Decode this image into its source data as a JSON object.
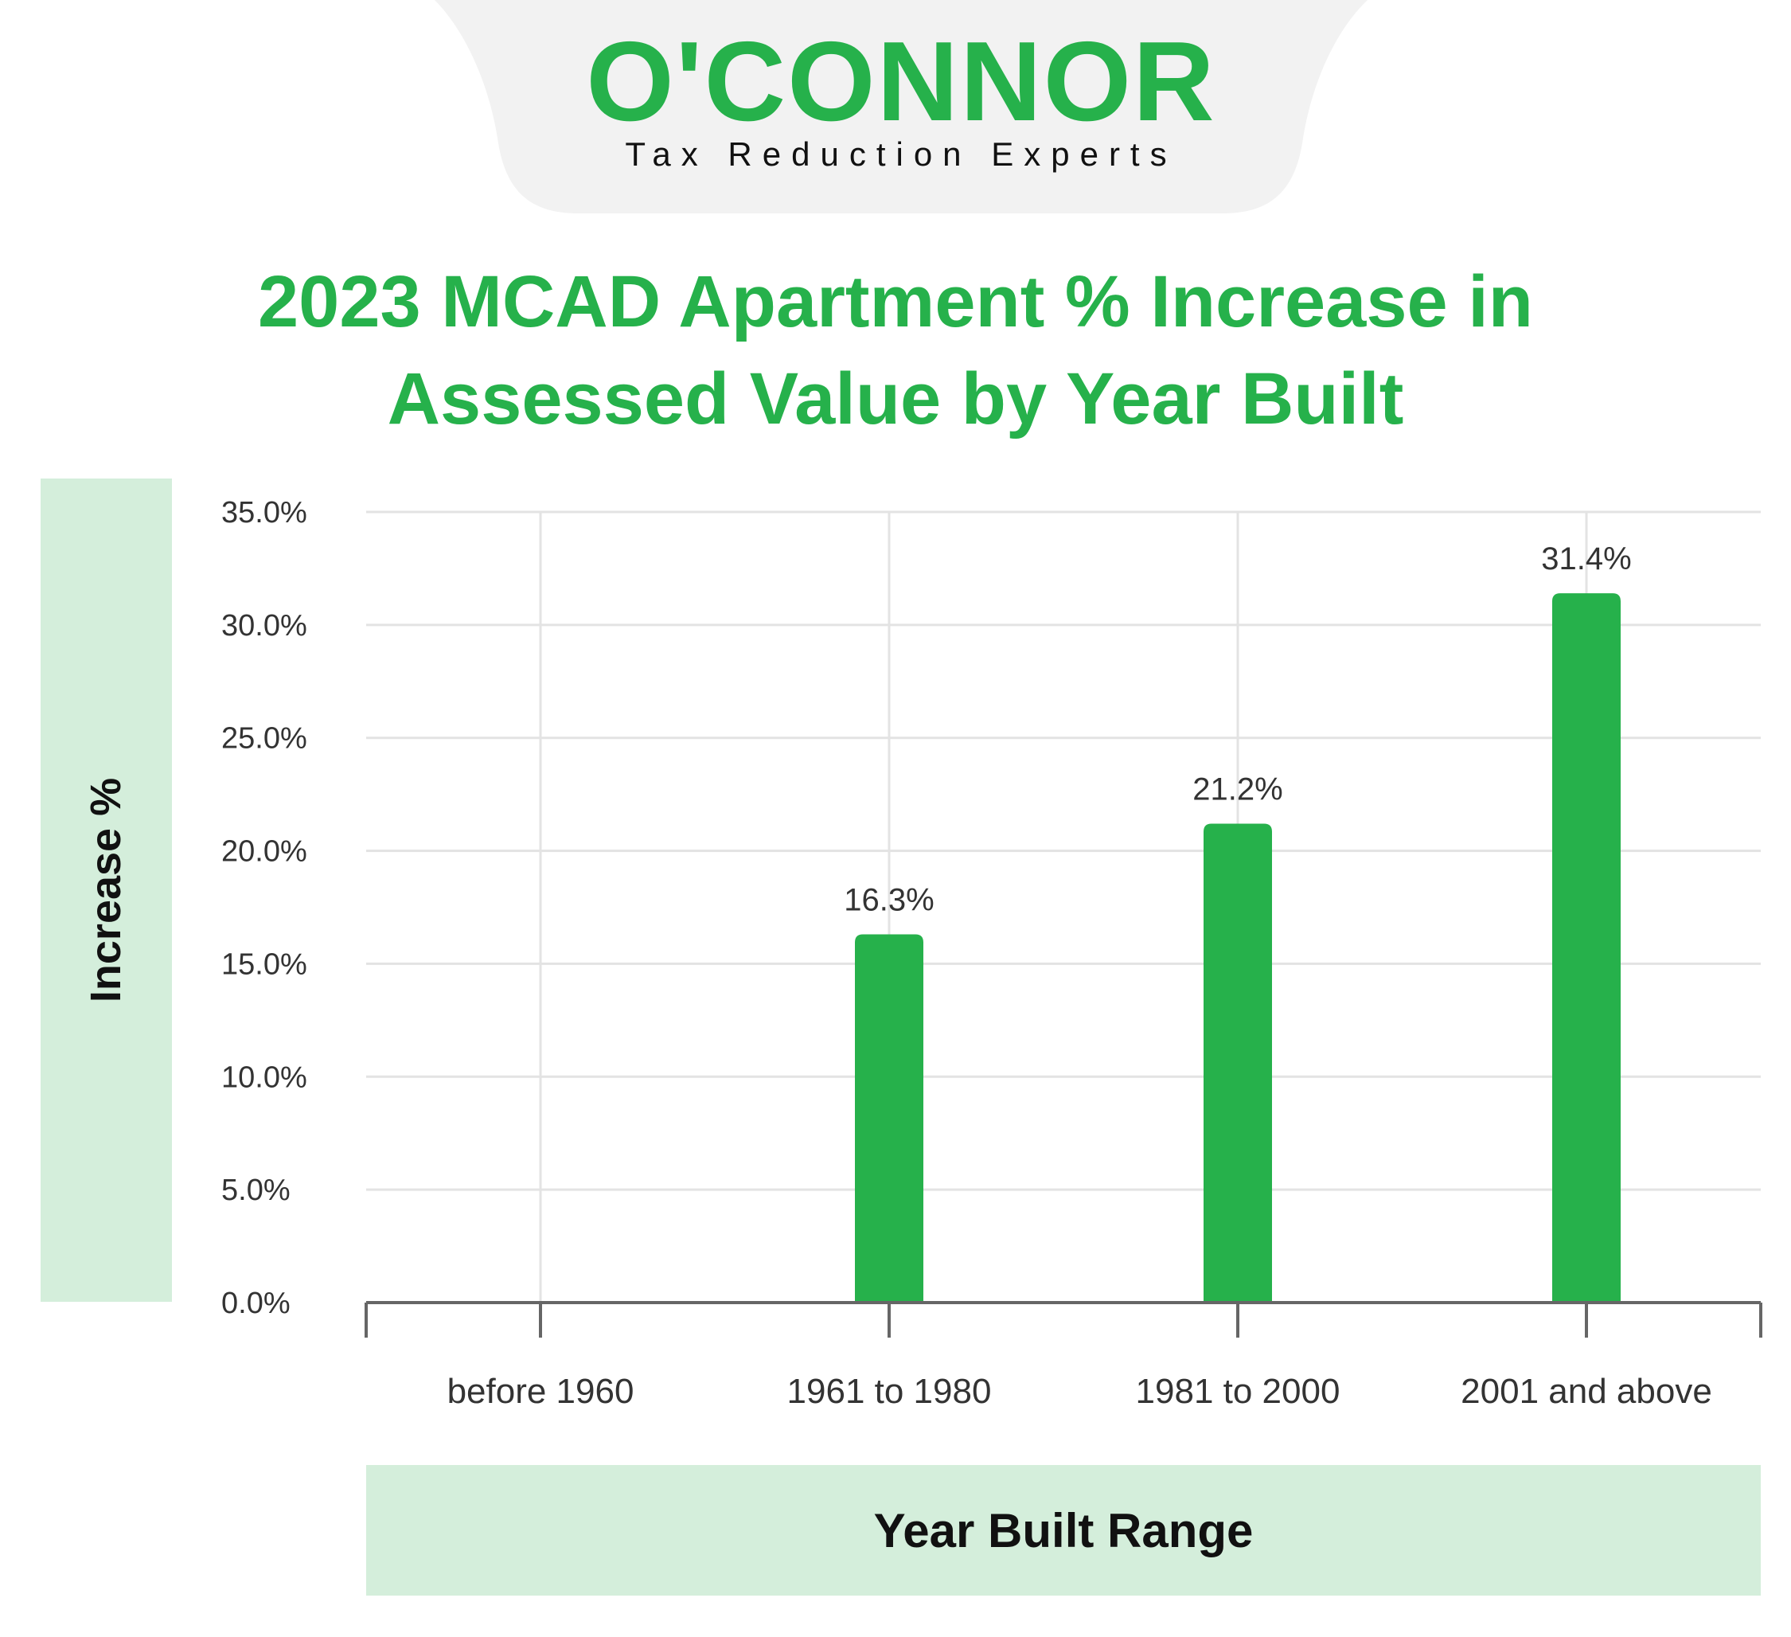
{
  "brand": {
    "name": "O'CONNOR",
    "tagline": "Tax Reduction Experts",
    "color": "#26b14b"
  },
  "chart_data": {
    "type": "bar",
    "title": "2023 MCAD Apartment % Increase in Assessed Value by Year Built",
    "xlabel": "Year Built Range",
    "ylabel": "Increase %",
    "categories": [
      "before 1960",
      "1961 to 1980",
      "1981 to 2000",
      "2001 and above"
    ],
    "values": [
      null,
      16.3,
      21.2,
      31.4
    ],
    "data_labels": [
      "",
      "16.3%",
      "21.2%",
      "31.4%"
    ],
    "yticks": [
      "0.0%",
      "5.0%",
      "10.0%",
      "15.0%",
      "20.0%",
      "25.0%",
      "30.0%",
      "35.0%"
    ],
    "ylim": [
      0,
      35
    ],
    "ytick_step": 5,
    "grid": true,
    "bar_color": "#26b14b",
    "label_bg_color": "#d4eedb"
  }
}
